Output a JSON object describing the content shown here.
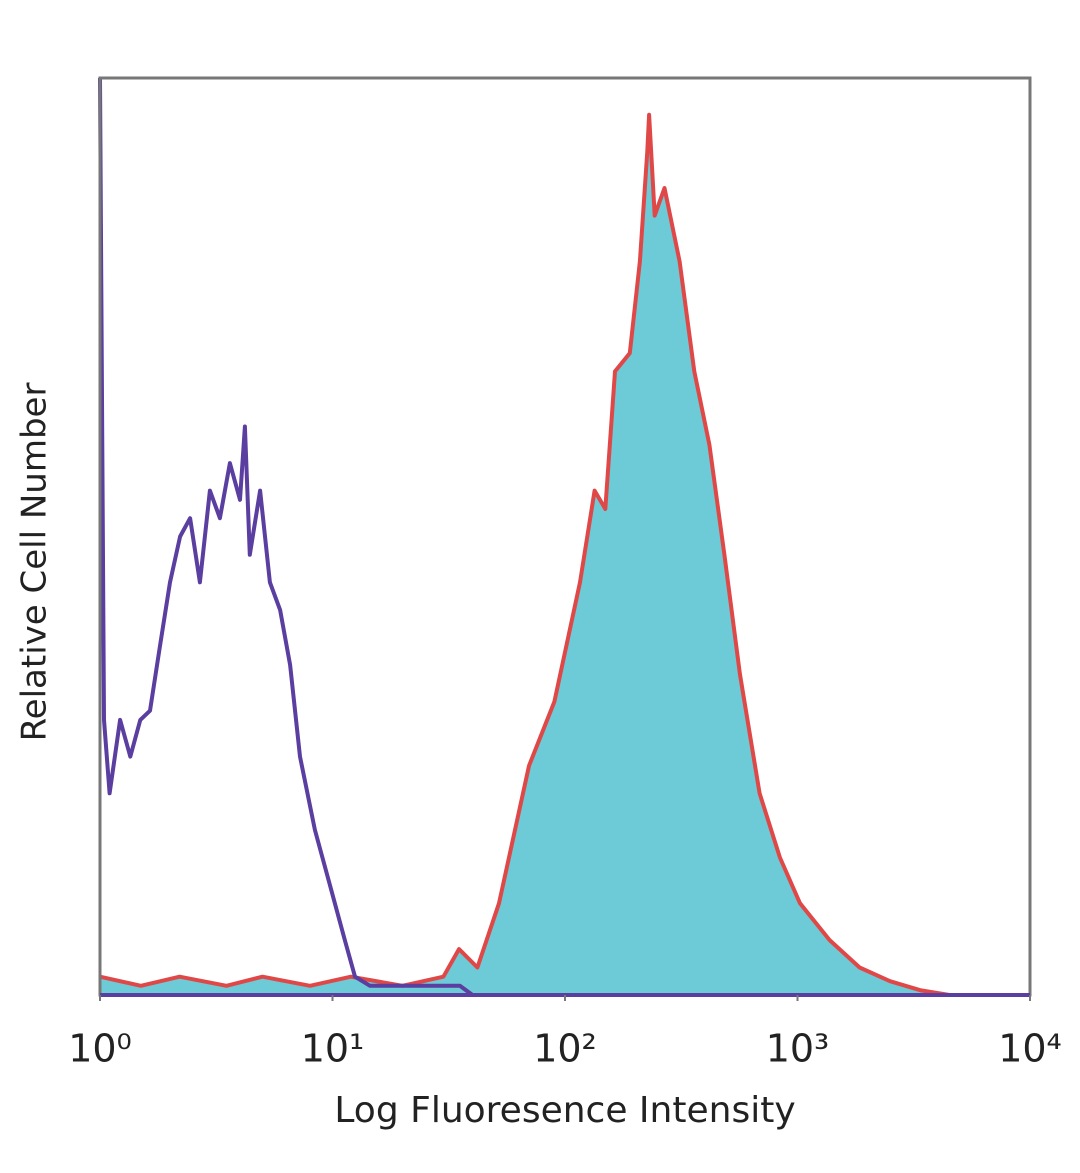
{
  "chart_data": {
    "type": "histogram-overlay",
    "x_label": "Log Fluoresence Intensity",
    "y_label": "Relative Cell Number",
    "xscale": "log",
    "xlim": [
      1,
      10000
    ],
    "ylim": [
      0,
      100
    ],
    "xticks": [
      {
        "value": 1,
        "label": "10⁰"
      },
      {
        "value": 10,
        "label": "10¹"
      },
      {
        "value": 100,
        "label": "10²"
      },
      {
        "value": 1000,
        "label": "10³"
      },
      {
        "value": 10000,
        "label": "10⁴"
      }
    ],
    "frame_color": "#777777",
    "series": [
      {
        "color": "#5a3ea0",
        "x": [
          1,
          1.04,
          1.1,
          1.22,
          1.35,
          1.49,
          1.64,
          1.81,
          2.0,
          2.21,
          2.44,
          2.69,
          2.97,
          3.28,
          3.62,
          4.0,
          4.2,
          4.41,
          4.88,
          5.38,
          5.95,
          6.57,
          7.25,
          8.4,
          9.75,
          11.3,
          12.5,
          14.5,
          19.5,
          35.3,
          40,
          10000
        ],
        "values": [
          100,
          30,
          22,
          30,
          26,
          30,
          31,
          38,
          45,
          50,
          52,
          45,
          55,
          52,
          58,
          54,
          62,
          48,
          55,
          45,
          42,
          36,
          26,
          18,
          12,
          6,
          2,
          1,
          1,
          1,
          0,
          0
        ]
      },
      {
        "color": "#e04848",
        "fill": "#6ccbd6",
        "x": [
          1,
          1.5,
          2.2,
          3.5,
          5,
          8,
          12,
          20,
          30,
          35,
          42,
          52,
          70,
          90,
          116,
          134,
          149,
          164,
          190,
          210,
          226,
          230,
          243,
          268,
          311,
          360,
          418,
          485,
          565,
          687,
          840,
          1025,
          1373,
          1850,
          2500,
          3400,
          4500,
          10000
        ],
        "values": [
          2,
          1,
          2,
          1,
          2,
          1,
          2,
          1,
          2,
          5,
          3,
          10,
          25,
          32,
          45,
          55,
          53,
          68,
          70,
          80,
          92,
          96,
          85,
          88,
          80,
          68,
          60,
          48,
          35,
          22,
          15,
          10,
          6,
          3,
          1.5,
          0.5,
          0,
          0
        ]
      }
    ]
  }
}
